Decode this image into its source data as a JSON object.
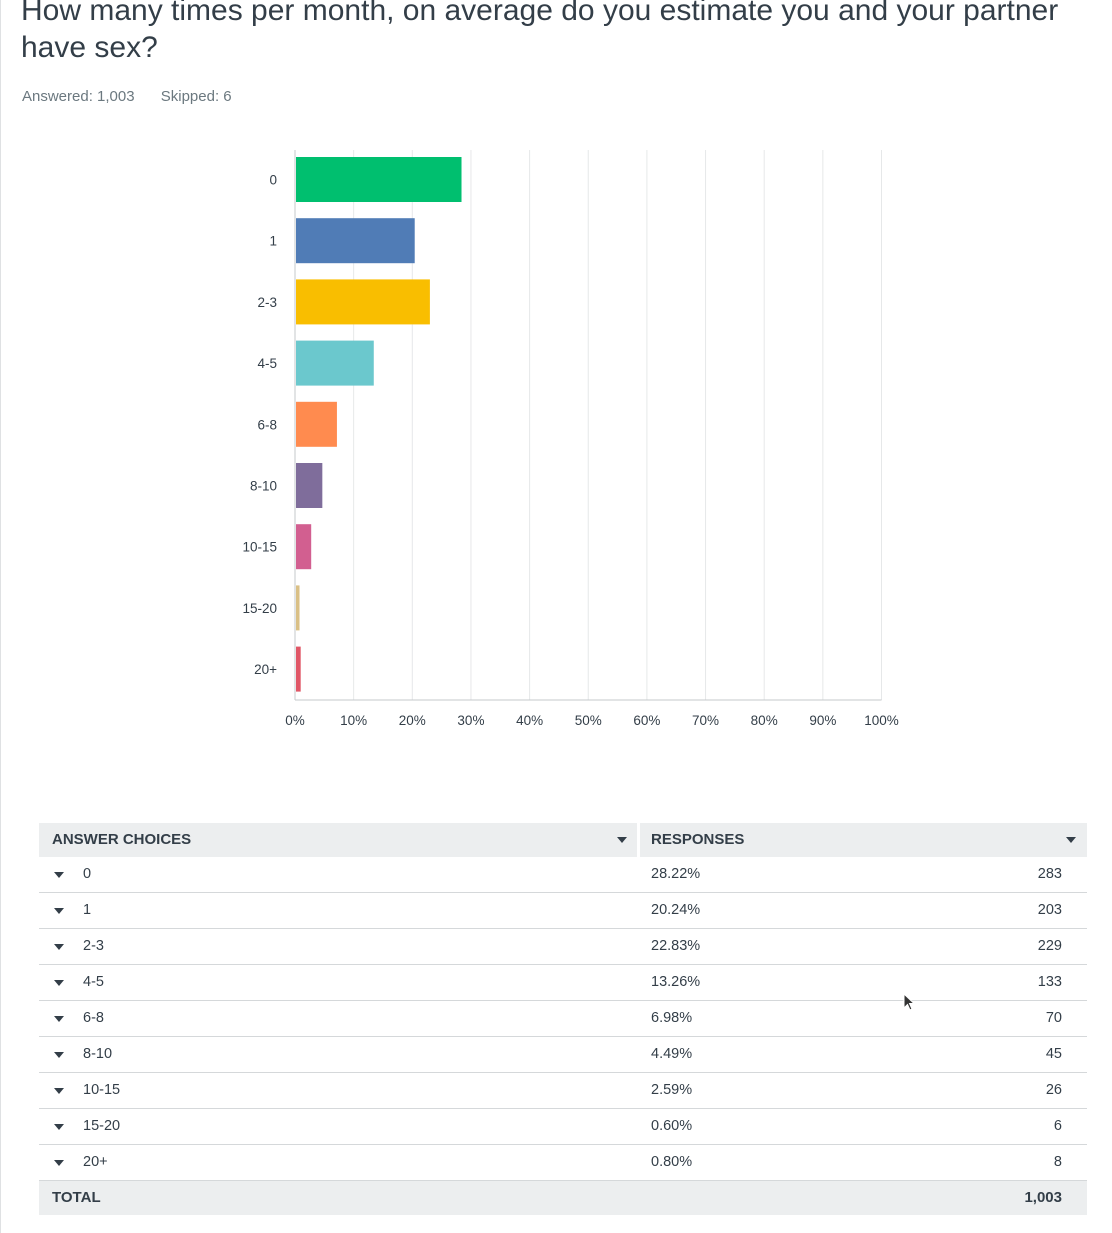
{
  "question": {
    "title": "How many times per month, on average do you estimate you and your partner have sex?",
    "answered": "Answered: 1,003",
    "skipped": "Skipped: 6"
  },
  "chart_data": {
    "type": "bar",
    "orientation": "horizontal",
    "categories": [
      "0",
      "1",
      "2-3",
      "4-5",
      "6-8",
      "8-10",
      "10-15",
      "15-20",
      "20+"
    ],
    "values": [
      28.22,
      20.24,
      22.83,
      13.26,
      6.98,
      4.49,
      2.59,
      0.6,
      0.8
    ],
    "colors": [
      "#00bf6f",
      "#507cb6",
      "#f9be00",
      "#6bc8cd",
      "#ff8b4f",
      "#7f6d9b",
      "#d25f90",
      "#dac086",
      "#e05666"
    ],
    "xlim": [
      0,
      100
    ],
    "xticks": [
      "0%",
      "10%",
      "20%",
      "30%",
      "40%",
      "50%",
      "60%",
      "70%",
      "80%",
      "90%",
      "100%"
    ],
    "grid": true
  },
  "table": {
    "col_choices": "ANSWER CHOICES",
    "col_responses": "RESPONSES",
    "rows": [
      {
        "choice": "0",
        "pct": "28.22%",
        "count": "283"
      },
      {
        "choice": "1",
        "pct": "20.24%",
        "count": "203"
      },
      {
        "choice": "2-3",
        "pct": "22.83%",
        "count": "229"
      },
      {
        "choice": "4-5",
        "pct": "13.26%",
        "count": "133"
      },
      {
        "choice": "6-8",
        "pct": "6.98%",
        "count": "70"
      },
      {
        "choice": "8-10",
        "pct": "4.49%",
        "count": "45"
      },
      {
        "choice": "10-15",
        "pct": "2.59%",
        "count": "26"
      },
      {
        "choice": "15-20",
        "pct": "0.60%",
        "count": "6"
      },
      {
        "choice": "20+",
        "pct": "0.80%",
        "count": "8"
      }
    ],
    "total_label": "TOTAL",
    "total_value": "1,003"
  }
}
